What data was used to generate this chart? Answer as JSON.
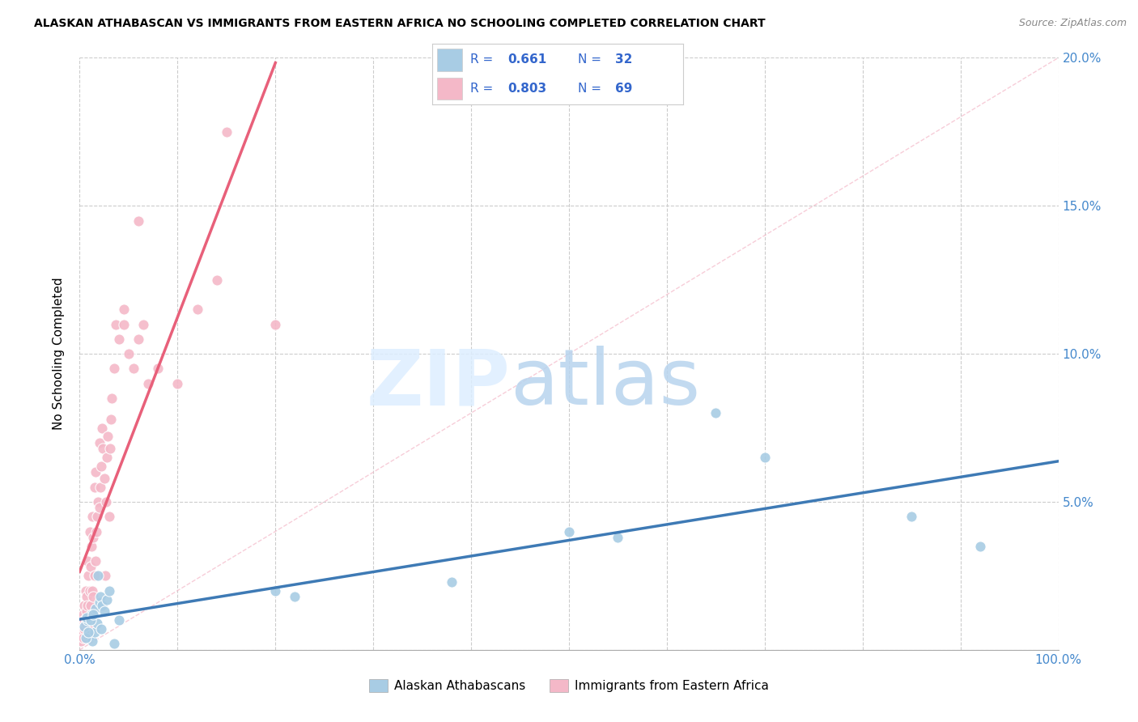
{
  "title": "ALASKAN ATHABASCAN VS IMMIGRANTS FROM EASTERN AFRICA NO SCHOOLING COMPLETED CORRELATION CHART",
  "source": "Source: ZipAtlas.com",
  "ylabel": "No Schooling Completed",
  "blue_R": 0.661,
  "blue_N": 32,
  "pink_R": 0.803,
  "pink_N": 69,
  "blue_color": "#a8cce4",
  "pink_color": "#f4b8c8",
  "blue_line_color": "#3e7ab5",
  "pink_line_color": "#e8607a",
  "legend_text_color": "#3366cc",
  "axis_color": "#4488cc",
  "background_color": "#ffffff",
  "grid_color": "#cccccc",
  "xlim": [
    0,
    100
  ],
  "ylim": [
    0,
    20
  ],
  "blue_scatter_x": [
    0.5,
    0.8,
    1.0,
    1.2,
    1.3,
    1.5,
    1.6,
    1.8,
    2.0,
    2.1,
    2.2,
    2.3,
    2.5,
    2.8,
    3.0,
    3.5,
    0.6,
    0.7,
    0.9,
    1.1,
    1.4,
    1.9,
    4.0,
    20.0,
    22.0,
    38.0,
    50.0,
    55.0,
    65.0,
    70.0,
    85.0,
    92.0
  ],
  "blue_scatter_y": [
    0.8,
    1.0,
    0.5,
    1.2,
    0.3,
    0.6,
    1.4,
    0.9,
    1.6,
    1.8,
    0.7,
    1.5,
    1.3,
    1.7,
    2.0,
    0.2,
    0.4,
    1.1,
    0.6,
    1.0,
    1.2,
    2.5,
    1.0,
    2.0,
    1.8,
    2.3,
    4.0,
    3.8,
    8.0,
    6.5,
    4.5,
    3.5
  ],
  "pink_scatter_x": [
    0.1,
    0.2,
    0.2,
    0.3,
    0.3,
    0.4,
    0.4,
    0.5,
    0.5,
    0.5,
    0.6,
    0.6,
    0.7,
    0.7,
    0.8,
    0.8,
    0.8,
    0.9,
    0.9,
    1.0,
    1.0,
    1.0,
    1.1,
    1.1,
    1.2,
    1.2,
    1.3,
    1.3,
    1.4,
    1.4,
    1.5,
    1.5,
    1.6,
    1.6,
    1.7,
    1.8,
    1.9,
    2.0,
    2.0,
    2.1,
    2.2,
    2.3,
    2.4,
    2.5,
    2.6,
    2.7,
    2.8,
    2.9,
    3.0,
    3.1,
    3.2,
    3.3,
    3.5,
    3.7,
    4.0,
    4.5,
    5.0,
    5.5,
    6.0,
    6.5,
    7.0,
    8.0,
    10.0,
    12.0,
    14.0,
    15.0,
    4.5,
    6.0,
    20.0
  ],
  "pink_scatter_y": [
    0.3,
    0.5,
    0.8,
    0.6,
    1.0,
    0.4,
    1.2,
    0.7,
    1.0,
    1.5,
    0.9,
    2.0,
    1.3,
    1.8,
    0.5,
    1.5,
    3.0,
    1.0,
    2.5,
    0.8,
    2.0,
    4.0,
    1.5,
    2.8,
    1.0,
    3.5,
    2.0,
    4.5,
    1.8,
    3.8,
    2.5,
    5.5,
    3.0,
    6.0,
    4.0,
    4.5,
    5.0,
    4.8,
    7.0,
    5.5,
    6.2,
    7.5,
    6.8,
    5.8,
    2.5,
    5.0,
    6.5,
    7.2,
    4.5,
    6.8,
    7.8,
    8.5,
    9.5,
    11.0,
    10.5,
    11.5,
    10.0,
    9.5,
    10.5,
    11.0,
    9.0,
    9.5,
    9.0,
    11.5,
    12.5,
    17.5,
    11.0,
    14.5,
    11.0
  ]
}
